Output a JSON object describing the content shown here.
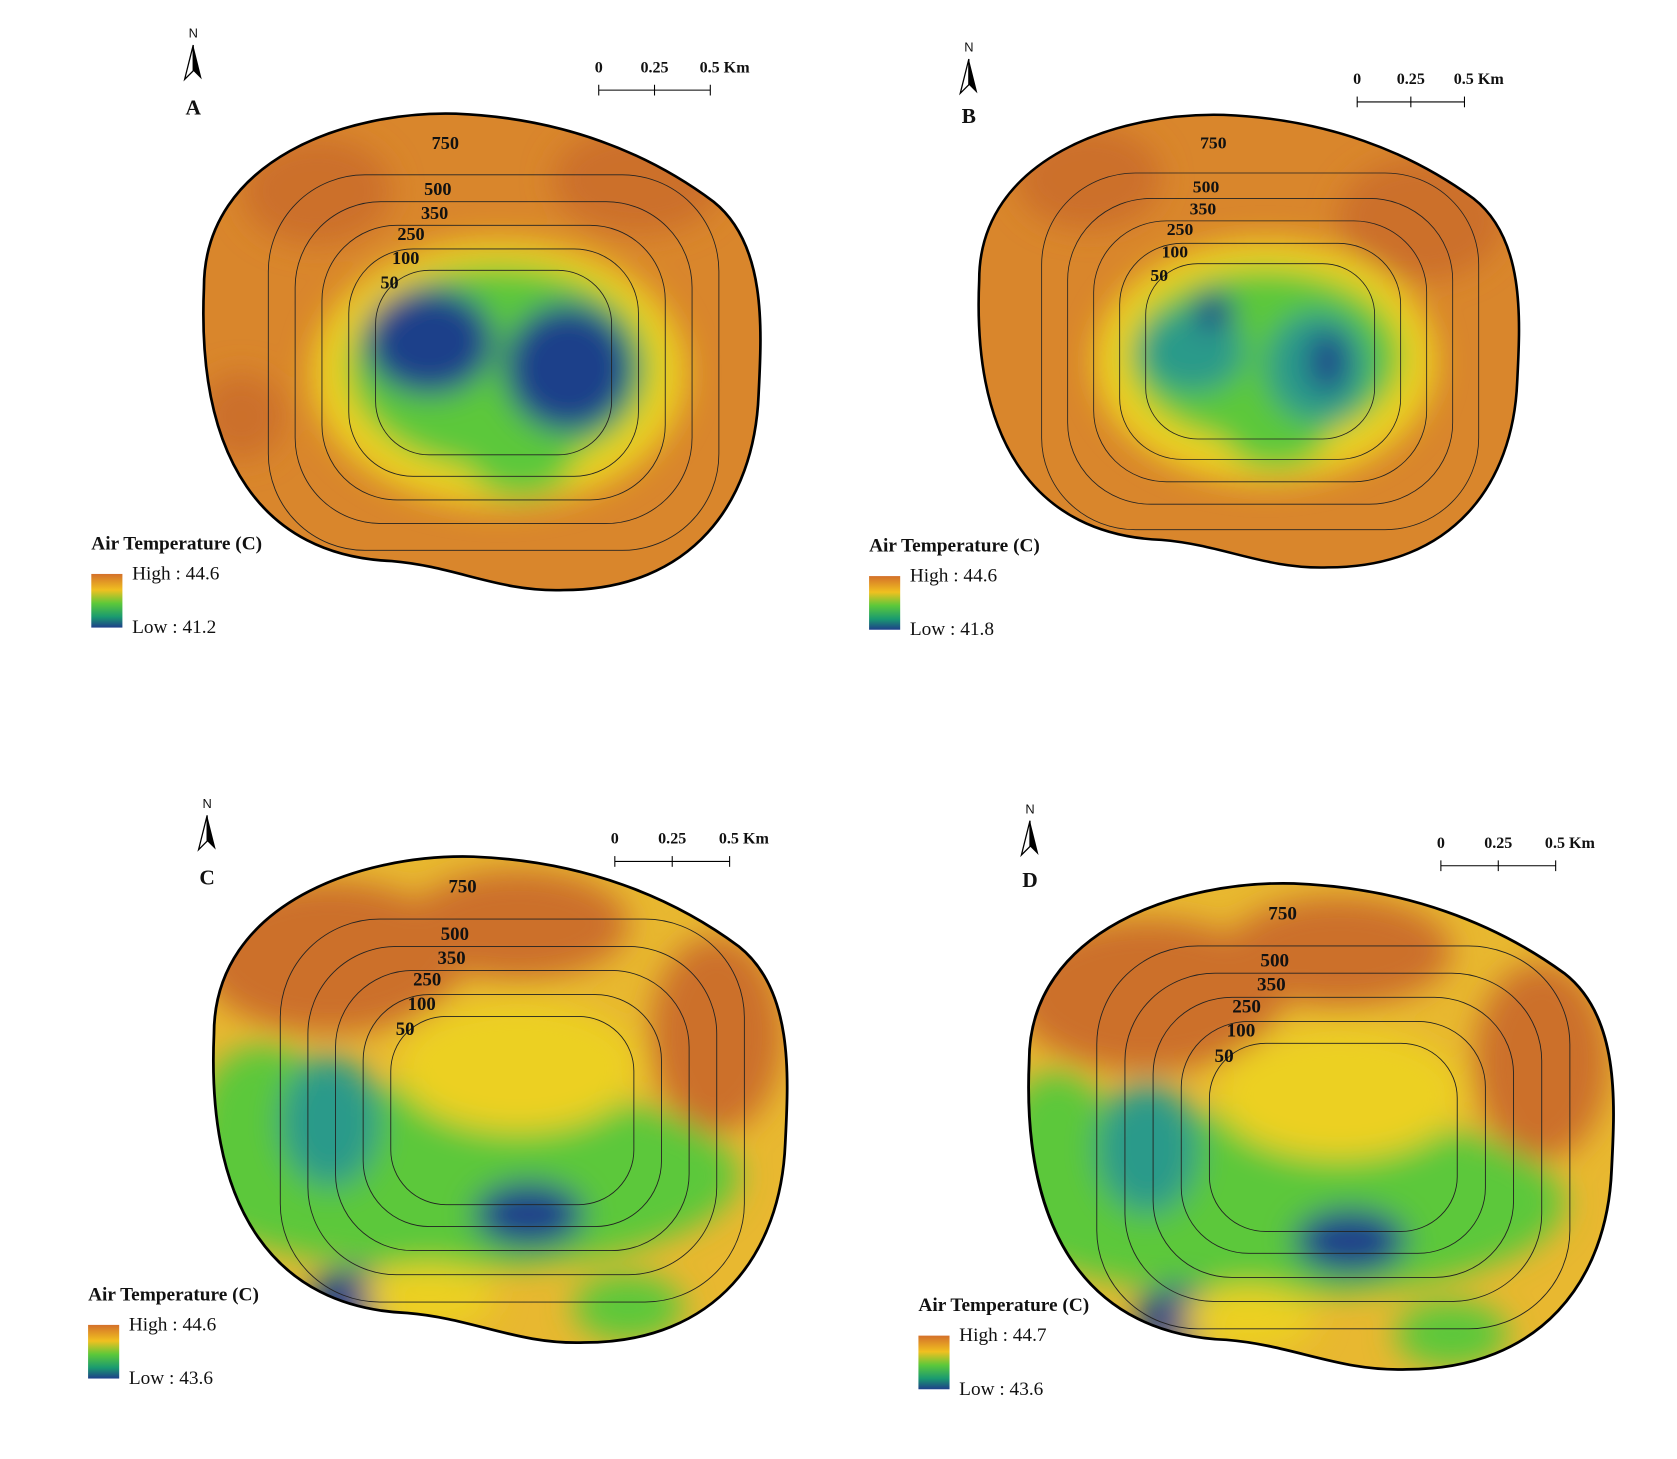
{
  "panels": [
    {
      "label": "A",
      "north": "N",
      "scale": [
        "0",
        "0.25",
        "0.5 Km"
      ],
      "contours": [
        "750",
        "500",
        "350",
        "250",
        "100",
        "50"
      ],
      "legend": {
        "title": "Air Temperature (C)",
        "high": "High : 44.6",
        "low": "Low : 41.2"
      }
    },
    {
      "label": "B",
      "north": "N",
      "scale": [
        "0",
        "0.25",
        "0.5 Km"
      ],
      "contours": [
        "750",
        "500",
        "350",
        "250",
        "100",
        "50"
      ],
      "legend": {
        "title": "Air Temperature (C)",
        "high": "High : 44.6",
        "low": "Low : 41.8"
      }
    },
    {
      "label": "C",
      "north": "N",
      "scale": [
        "0",
        "0.25",
        "0.5 Km"
      ],
      "contours": [
        "750",
        "500",
        "350",
        "250",
        "100",
        "50"
      ],
      "legend": {
        "title": "Air Temperature (C)",
        "high": "High : 44.6",
        "low": "Low : 43.6"
      }
    },
    {
      "label": "D",
      "north": "N",
      "scale": [
        "0",
        "0.25",
        "0.5 Km"
      ],
      "contours": [
        "750",
        "500",
        "350",
        "250",
        "100",
        "50"
      ],
      "legend": {
        "title": "Air Temperature (C)",
        "high": "High : 44.7",
        "low": "Low : 43.6"
      }
    }
  ]
}
